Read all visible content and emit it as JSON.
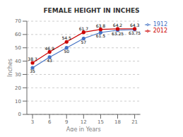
{
  "chart_data": {
    "type": "line",
    "title": "FEMALE HEIGHT IN INCHES",
    "x_label": "Age in Years",
    "y_label": "Inches",
    "x": [
      3,
      6,
      9,
      12,
      15,
      18,
      21
    ],
    "xlim": [
      2,
      22
    ],
    "xticks": [
      3,
      6,
      9,
      12,
      15,
      18,
      21
    ],
    "ylim": [
      0,
      70
    ],
    "yticks": [
      0,
      10,
      20,
      30,
      40,
      50,
      60,
      70
    ],
    "grid": true,
    "legend": "right",
    "data_labels": true,
    "series": [
      {
        "name": "1912",
        "color": "#4472c4",
        "marker": "circle",
        "values": [
          35,
          43,
          50,
          57,
          61.5,
          63.25,
          63.75
        ]
      },
      {
        "name": "2012",
        "color": "#cc0000",
        "marker": "circle",
        "values": [
          38.7,
          46.9,
          54.5,
          61.7,
          63.8,
          64.2,
          64.3
        ]
      }
    ]
  }
}
